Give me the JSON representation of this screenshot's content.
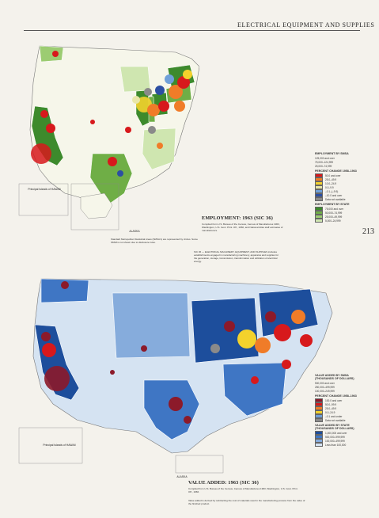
{
  "page": {
    "title": "ELECTRICAL EQUIPMENT AND SUPPLIES",
    "page_number": "213"
  },
  "map_employment": {
    "title": "EMPLOYMENT: 1963 (SIC 36)",
    "source": "Compiled from U.S. Bureau of the Census, Census of Manufactures 1963, Washington, U.S. Govt. Print. Off., 1966, and National Atlas staff estimates of manufacturers.",
    "inset_hawaii": "Principal Islands of HAWAII",
    "inset_alaska": "ALASKA",
    "note": "Standard Metropolitan Statistical Areas (SMSA's) are represented by circles. Some SMSA's not shown due to disclosure rules.",
    "legend": {
      "smsa_head": "EMPLOYMENT BY SMSA",
      "smsa_sizes": [
        "125,000 and over",
        "75,000–124,999",
        "25,000–74,999",
        "10,000–24,999",
        "2,000–9,999",
        "1,000"
      ],
      "change_head": "PERCENT CHANGE 1958–1963",
      "change_classes": [
        "50.0 and over",
        "25.0–49.9",
        "10.0–24.9",
        "0.0–9.9",
        "–0.1–(–9.9)",
        "–10.0 and over",
        "Data not available"
      ],
      "change_colors": [
        "#d7191c",
        "#f07c28",
        "#f3d22c",
        "#e9e7a8",
        "#6fa0d9",
        "#2c4fa3",
        "#8a8a8a"
      ],
      "state_head": "EMPLOYMENT BY STATE",
      "state_classes": [
        "75,000 and over",
        "50,000–74,999",
        "25,000–49,999",
        "5,000–24,999",
        "Less than 5,000"
      ],
      "state_colors": [
        "#3d8a2c",
        "#6fae46",
        "#9ccc72",
        "#cfe6b0",
        "#f6f6ea"
      ]
    }
  },
  "map_value": {
    "title": "VALUE ADDED: 1963 (SIC 36)",
    "source": "Compiled from U.S. Bureau of the Census, Census of Manufactures 1963, Washington, U.S. Govt. Print. Off., 1966.",
    "inset_hawaii": "Principal Islands of HAWAII",
    "inset_alaska": "ALASKA",
    "note": "Value added is derived by subtracting the cost of materials used in the manufacturing process from the value of the finished product.",
    "intro": "SIC 36 — ELECTRICAL MACHINERY, EQUIPMENT, AND SUPPLIES includes establishments engaged in manufacturing machinery, apparatus and supplies for the generation, storage, transmission, transformation and utilization of electrical energy.",
    "legend": {
      "smsa_head": "VALUE ADDED BY SMSA (THOUSANDS OF DOLLARS)",
      "smsa_sizes": [
        "500,000 and over",
        "250,000–499,999",
        "100,000–249,999",
        "25,000–99,999",
        "Less than 25,000"
      ],
      "change_head": "PERCENT CHANGE 1958–1963",
      "change_classes": [
        "100.0 and over",
        "50.0–99.9",
        "25.0–49.9",
        "0.0–24.9",
        "–0.1 and under",
        "Data not available"
      ],
      "change_colors": [
        "#8c1a2a",
        "#d7191c",
        "#f07c28",
        "#f3d22c",
        "#6fa0d9",
        "#8a8a8a"
      ],
      "state_head": "VALUE ADDED BY STATE (THOUSANDS OF DOLLARS)",
      "state_classes": [
        "1,000,000 and over",
        "500,000–999,999",
        "100,000–499,999",
        "Less than 100,000"
      ],
      "state_colors": [
        "#1d4e9c",
        "#3f76c4",
        "#86acdc",
        "#d5e3f2"
      ]
    }
  }
}
